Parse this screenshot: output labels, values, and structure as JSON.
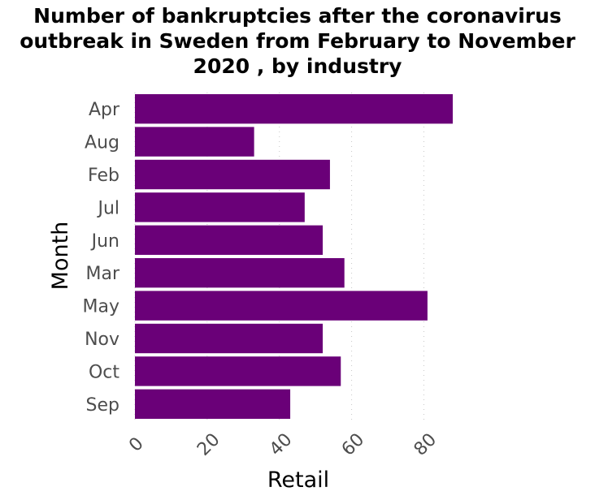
{
  "chart_data": {
    "type": "bar",
    "orientation": "horizontal",
    "title": "Number of bankruptcies after the coronavirus outbreak in Sweden from February to November 2020 , by industry",
    "title_lines": [
      "Number of bankruptcies after the coronavirus",
      "outbreak in Sweden from February to November",
      "2020 , by industry"
    ],
    "xlabel": "Retail",
    "ylabel": "Month",
    "categories": [
      "Apr",
      "Aug",
      "Feb",
      "Jul",
      "Jun",
      "Mar",
      "May",
      "Nov",
      "Oct",
      "Sep"
    ],
    "values": [
      88,
      33,
      54,
      47,
      52,
      58,
      81,
      52,
      57,
      43
    ],
    "xlim": [
      0,
      88
    ],
    "xticks": [
      0,
      20,
      40,
      60,
      80
    ],
    "xtick_labels": [
      "0",
      "20",
      "40",
      "60",
      "80"
    ],
    "grid": "vertical dotted",
    "bar_color": "#6a0078"
  }
}
